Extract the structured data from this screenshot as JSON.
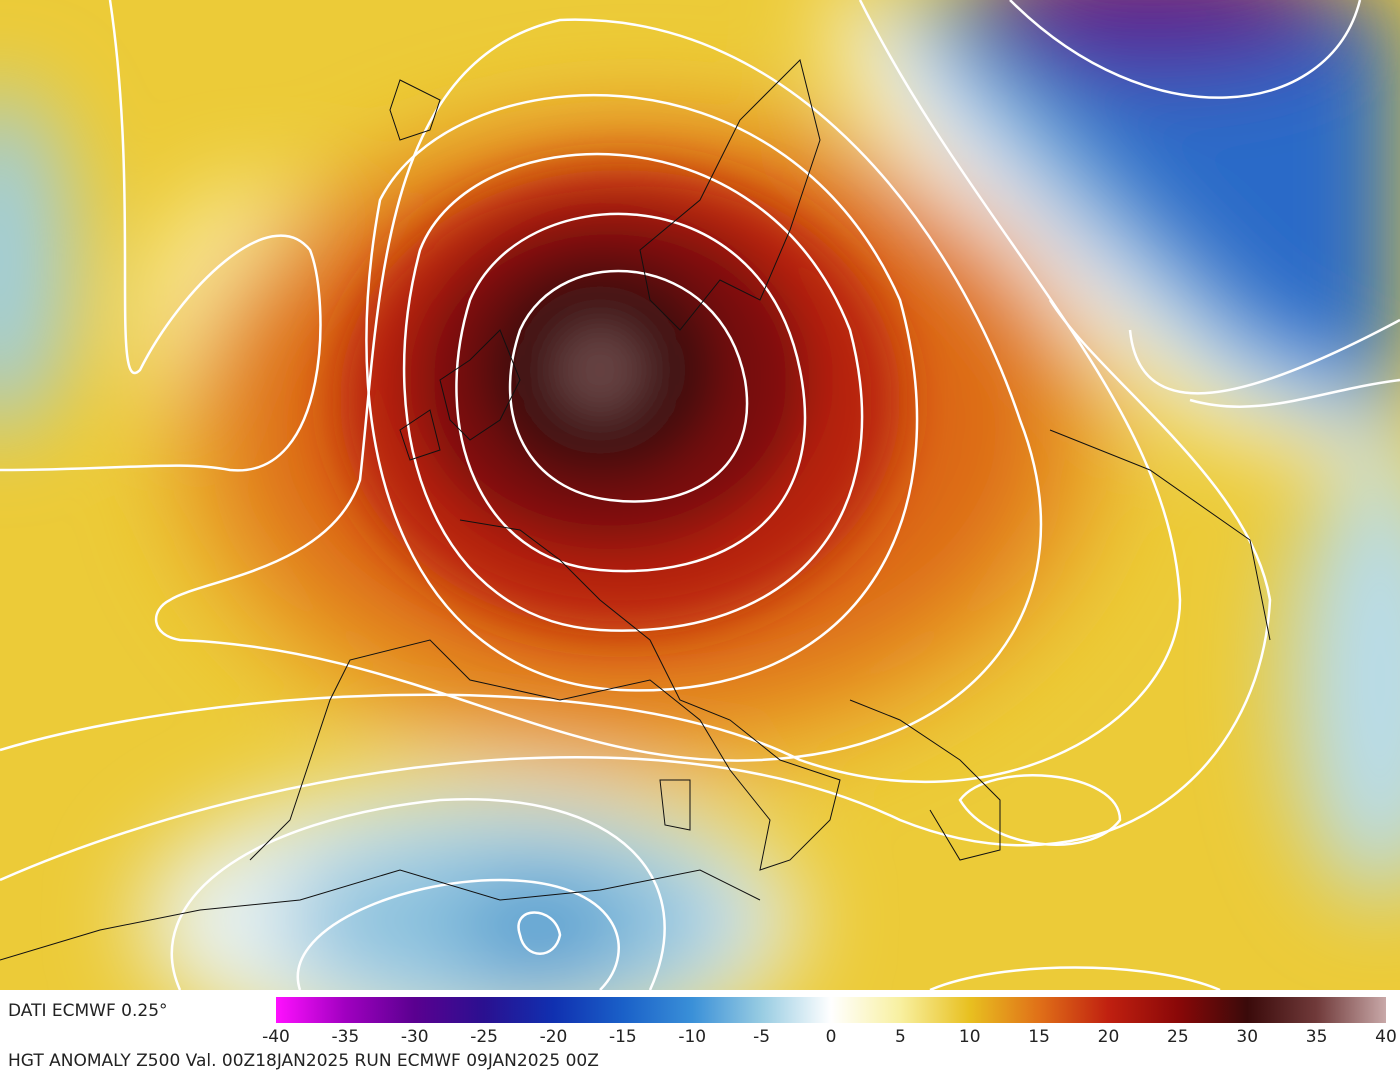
{
  "header": {
    "source": "DATI ECMWF 0.25°"
  },
  "colorbar": {
    "range": [
      -40,
      40
    ],
    "ticks": [
      -40,
      -35,
      -30,
      -25,
      -20,
      -15,
      -10,
      -5,
      0,
      5,
      10,
      15,
      20,
      25,
      30,
      35,
      40
    ],
    "colors": [
      "#ff10ff",
      "#a000c0",
      "#5a0090",
      "#2a1090",
      "#1030b0",
      "#1a60c8",
      "#3a90d8",
      "#98cce2",
      "#ffffff",
      "#f8f0a0",
      "#e8c020",
      "#e07018",
      "#c02010",
      "#8a0808",
      "#3a0a0a",
      "#703a3a",
      "#c8a8a8"
    ]
  },
  "footer": {
    "caption": "HGT ANOMALY Z500 Val. 00Z18JAN2025 RUN ECMWF 09JAN2025 00Z"
  }
}
